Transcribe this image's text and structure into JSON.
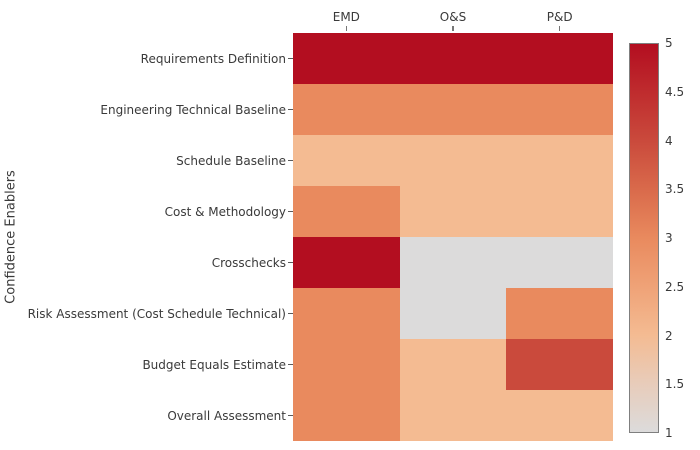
{
  "chart_data": {
    "type": "heatmap",
    "title": "",
    "xlabel": "",
    "ylabel": "Confidence Enablers",
    "columns": [
      "EMD",
      "O&S",
      "P&D"
    ],
    "rows": [
      "Requirements Definition",
      "Engineering Technical Baseline",
      "Schedule Baseline",
      "Cost & Methodology",
      "Crosschecks",
      "Risk Assessment (Cost Schedule Technical)",
      "Budget Equals Estimate",
      "Overall Assessment"
    ],
    "values": [
      [
        5,
        5,
        5
      ],
      [
        3,
        3,
        3
      ],
      [
        2,
        2,
        2
      ],
      [
        3,
        2,
        2
      ],
      [
        5,
        1,
        1
      ],
      [
        3,
        1,
        3
      ],
      [
        3,
        2,
        4
      ],
      [
        3,
        2,
        2
      ]
    ],
    "vmin": 1,
    "vmax": 5,
    "colorbar_ticks": [
      1,
      1.5,
      2,
      2.5,
      3,
      3.5,
      4,
      4.5,
      5
    ],
    "colorbar_position": "right",
    "grid": false,
    "colormap_stops": [
      {
        "v": 1,
        "c": "#dcdbdb"
      },
      {
        "v": 1.5,
        "c": "#e8ccba"
      },
      {
        "v": 2,
        "c": "#f4bb92"
      },
      {
        "v": 2.5,
        "c": "#efa277"
      },
      {
        "v": 3,
        "c": "#e98a5e"
      },
      {
        "v": 3.5,
        "c": "#d96a4b"
      },
      {
        "v": 4,
        "c": "#ca4a3c"
      },
      {
        "v": 4.5,
        "c": "#bf2c2e"
      },
      {
        "v": 5,
        "c": "#b30e20"
      }
    ],
    "text_color": "#3a3a3a",
    "background_color": "#ffffff"
  }
}
